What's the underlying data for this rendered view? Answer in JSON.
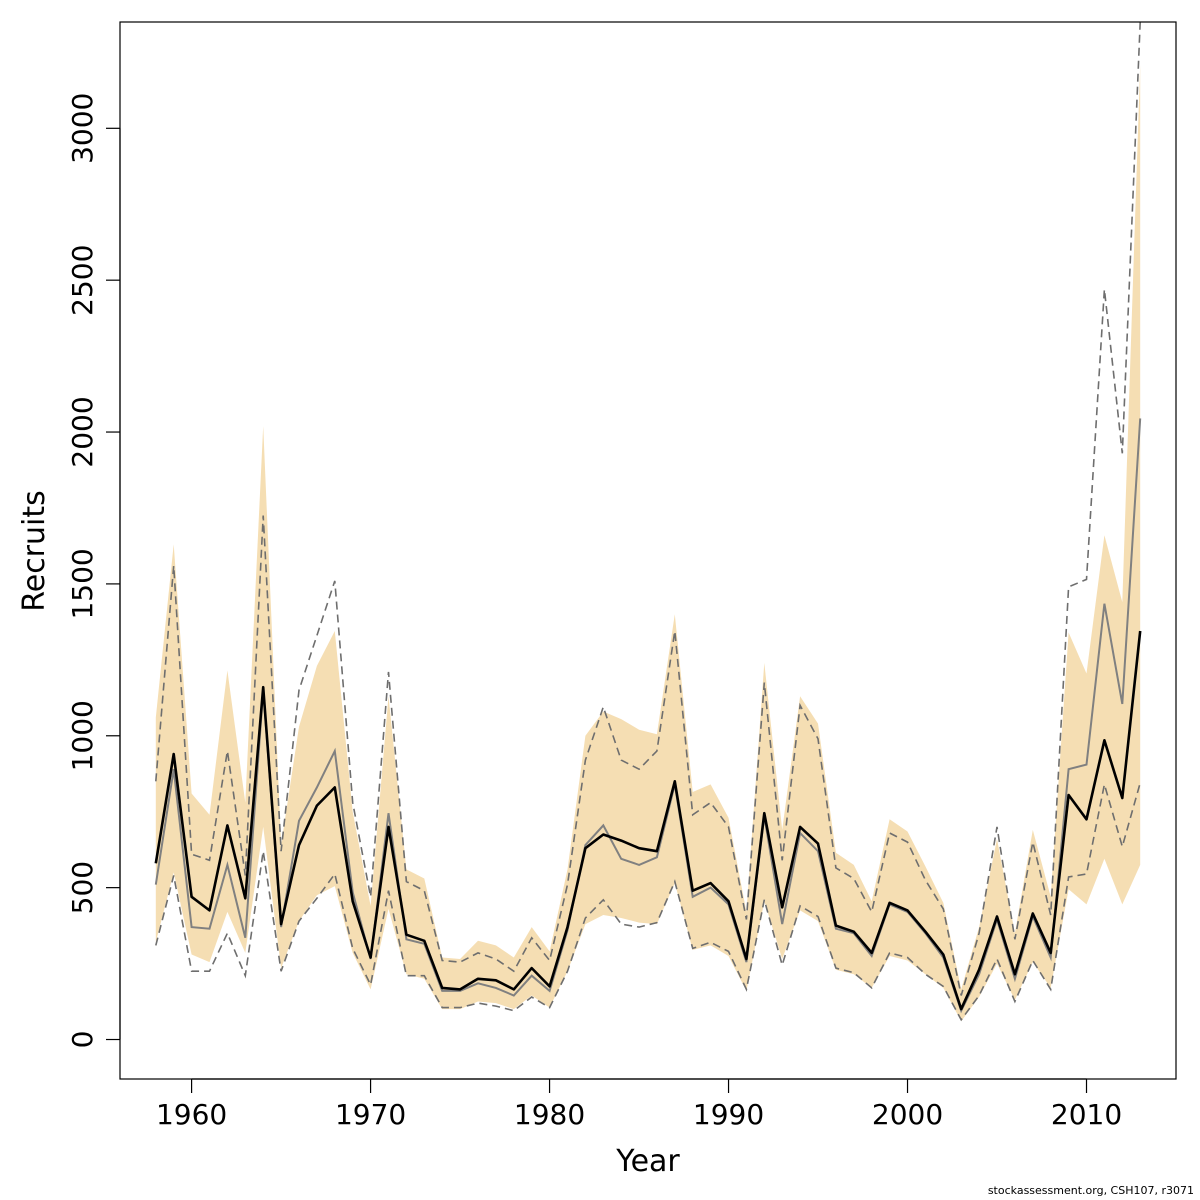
{
  "chart_data": {
    "type": "line",
    "xlabel": "Year",
    "ylabel": "Recruits",
    "xlim": [
      1956,
      2015
    ],
    "ylim": [
      -130,
      3350
    ],
    "x_ticks": [
      1960,
      1970,
      1980,
      1990,
      2000,
      2010
    ],
    "x_tick_labels": [
      "1960",
      "1970",
      "1980",
      "1990",
      "2000",
      "2010"
    ],
    "y_ticks": [
      0,
      500,
      1000,
      1500,
      2000,
      2500,
      3000
    ],
    "y_tick_labels": [
      "0",
      "500",
      "1000",
      "1500",
      "2000",
      "2500",
      "3000"
    ],
    "grid": false,
    "legend": "none",
    "colors": {
      "band": "#f5deb3",
      "main_line": "#000000",
      "secondary_line": "#808080",
      "dashed_bounds": "#6e6e6e",
      "frame": "#000000"
    },
    "x": [
      1958,
      1959,
      1960,
      1961,
      1962,
      1963,
      1964,
      1965,
      1966,
      1967,
      1968,
      1969,
      1970,
      1971,
      1972,
      1973,
      1974,
      1975,
      1976,
      1977,
      1978,
      1979,
      1980,
      1981,
      1982,
      1983,
      1984,
      1985,
      1986,
      1987,
      1988,
      1989,
      1990,
      1991,
      1992,
      1993,
      1994,
      1995,
      1996,
      1997,
      1998,
      1999,
      2000,
      2001,
      2002,
      2003,
      2004,
      2005,
      2006,
      2007,
      2008,
      2009,
      2010,
      2011,
      2012,
      2013
    ],
    "series": [
      {
        "values": [
          580,
          940,
          470,
          425,
          705,
          465,
          1160,
          380,
          640,
          770,
          830,
          455,
          270,
          700,
          345,
          325,
          170,
          165,
          200,
          195,
          165,
          235,
          175,
          370,
          630,
          675,
          655,
          630,
          620,
          850,
          490,
          515,
          455,
          265,
          745,
          435,
          700,
          645,
          375,
          355,
          285,
          450,
          425,
          355,
          280,
          100,
          230,
          405,
          215,
          415,
          285,
          805,
          725,
          985,
          795,
          1345
        ]
      },
      {
        "values": [
          510,
          890,
          370,
          365,
          575,
          335,
          1150,
          370,
          720,
          830,
          950,
          485,
          265,
          745,
          330,
          315,
          160,
          160,
          185,
          170,
          145,
          210,
          160,
          360,
          640,
          705,
          595,
          575,
          600,
          840,
          470,
          500,
          445,
          255,
          735,
          380,
          680,
          620,
          365,
          350,
          275,
          445,
          420,
          350,
          270,
          95,
          215,
          395,
          200,
          405,
          270,
          890,
          905,
          1435,
          1105,
          2045
        ]
      },
      {
        "values": [
          1060,
          1630,
          810,
          740,
          1215,
          780,
          2020,
          640,
          1030,
          1230,
          1345,
          750,
          440,
          1130,
          560,
          530,
          270,
          265,
          325,
          310,
          270,
          370,
          290,
          560,
          1000,
          1080,
          1055,
          1020,
          1005,
          1400,
          815,
          840,
          730,
          420,
          1240,
          690,
          1130,
          1040,
          615,
          575,
          455,
          725,
          685,
          570,
          450,
          165,
          370,
          660,
          350,
          690,
          470,
          1340,
          1205,
          1660,
          1440,
          3210
        ]
      },
      {
        "values": [
          320,
          550,
          280,
          255,
          420,
          285,
          700,
          235,
          390,
          475,
          505,
          285,
          165,
          430,
          215,
          200,
          100,
          100,
          125,
          120,
          100,
          145,
          105,
          225,
          380,
          410,
          400,
          385,
          380,
          515,
          295,
          310,
          275,
          160,
          455,
          265,
          425,
          390,
          230,
          215,
          170,
          275,
          260,
          215,
          170,
          60,
          140,
          250,
          130,
          255,
          170,
          495,
          445,
          595,
          445,
          575
        ]
      },
      {
        "values": [
          850,
          1560,
          610,
          590,
          950,
          540,
          1725,
          620,
          1150,
          1330,
          1510,
          780,
          470,
          1210,
          520,
          490,
          260,
          255,
          285,
          265,
          225,
          335,
          260,
          510,
          920,
          1095,
          920,
          890,
          950,
          1345,
          740,
          780,
          700,
          395,
          1175,
          590,
          1100,
          990,
          565,
          530,
          420,
          680,
          650,
          525,
          430,
          145,
          350,
          700,
          330,
          650,
          410,
          1490,
          1515,
          2470,
          1930,
          3350
        ]
      },
      {
        "values": [
          310,
          540,
          225,
          225,
          350,
          210,
          620,
          225,
          390,
          465,
          545,
          300,
          180,
          490,
          210,
          210,
          105,
          105,
          120,
          110,
          95,
          140,
          105,
          225,
          400,
          460,
          380,
          370,
          385,
          520,
          300,
          320,
          290,
          165,
          460,
          245,
          440,
          405,
          235,
          220,
          170,
          285,
          270,
          215,
          175,
          65,
          145,
          265,
          125,
          260,
          165,
          535,
          545,
          840,
          635,
          845
        ]
      }
    ],
    "source_note": "stockassessment.org, CSH107, r3071"
  }
}
